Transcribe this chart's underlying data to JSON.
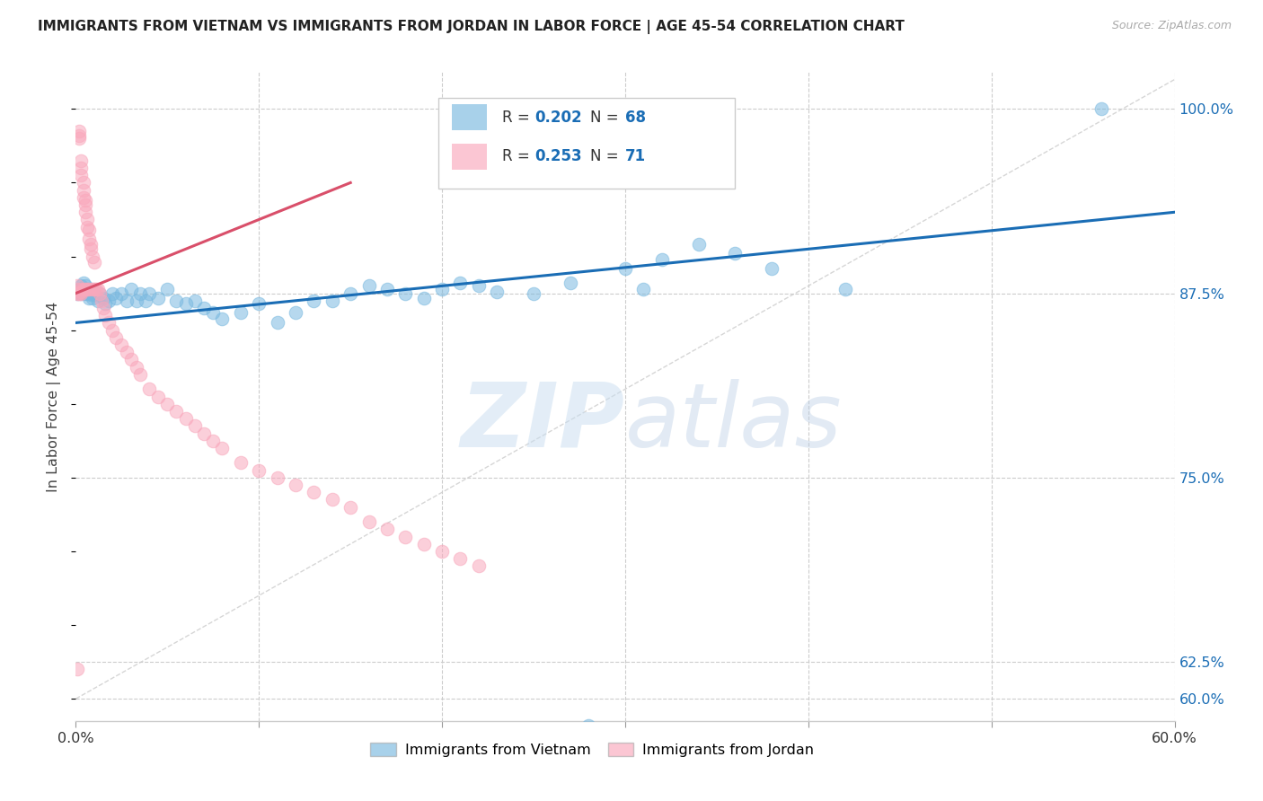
{
  "title": "IMMIGRANTS FROM VIETNAM VS IMMIGRANTS FROM JORDAN IN LABOR FORCE | AGE 45-54 CORRELATION CHART",
  "source": "Source: ZipAtlas.com",
  "ylabel": "In Labor Force | Age 45-54",
  "xlim": [
    0.0,
    0.6
  ],
  "ylim": [
    0.585,
    1.025
  ],
  "xticks": [
    0.0,
    0.1,
    0.2,
    0.3,
    0.4,
    0.5,
    0.6
  ],
  "xticklabels": [
    "0.0%",
    "",
    "",
    "",
    "",
    "",
    "60.0%"
  ],
  "yticks_right": [
    0.6,
    0.625,
    0.75,
    0.875,
    1.0
  ],
  "yticklabels_right": [
    "60.0%",
    "62.5%",
    "75.0%",
    "87.5%",
    "100.0%"
  ],
  "vietnam_color": "#7ab9e0",
  "jordan_color": "#f9a8bc",
  "vietnam_R": 0.202,
  "vietnam_N": 68,
  "jordan_R": 0.253,
  "jordan_N": 71,
  "regression_vietnam_color": "#1a6db5",
  "regression_jordan_color": "#d94f6a",
  "diagonal_color": "#cccccc",
  "watermark_zip": "ZIP",
  "watermark_atlas": "atlas",
  "legend_vietnam_label": "Immigrants from Vietnam",
  "legend_jordan_label": "Immigrants from Jordan",
  "vietnam_x": [
    0.001,
    0.002,
    0.003,
    0.003,
    0.004,
    0.004,
    0.004,
    0.005,
    0.005,
    0.005,
    0.006,
    0.006,
    0.007,
    0.007,
    0.008,
    0.008,
    0.009,
    0.009,
    0.01,
    0.01,
    0.012,
    0.013,
    0.015,
    0.016,
    0.018,
    0.02,
    0.022,
    0.025,
    0.028,
    0.03,
    0.033,
    0.035,
    0.038,
    0.04,
    0.045,
    0.05,
    0.055,
    0.06,
    0.065,
    0.07,
    0.075,
    0.08,
    0.09,
    0.1,
    0.11,
    0.12,
    0.13,
    0.14,
    0.15,
    0.16,
    0.17,
    0.18,
    0.19,
    0.2,
    0.21,
    0.22,
    0.23,
    0.25,
    0.27,
    0.3,
    0.31,
    0.32,
    0.34,
    0.36,
    0.38,
    0.42,
    0.56,
    0.28
  ],
  "vietnam_y": [
    0.875,
    0.878,
    0.88,
    0.875,
    0.882,
    0.876,
    0.878,
    0.875,
    0.88,
    0.876,
    0.878,
    0.875,
    0.876,
    0.872,
    0.878,
    0.874,
    0.876,
    0.872,
    0.875,
    0.874,
    0.87,
    0.875,
    0.872,
    0.868,
    0.87,
    0.875,
    0.872,
    0.875,
    0.87,
    0.878,
    0.87,
    0.875,
    0.87,
    0.875,
    0.872,
    0.878,
    0.87,
    0.868,
    0.87,
    0.865,
    0.862,
    0.858,
    0.862,
    0.868,
    0.855,
    0.862,
    0.87,
    0.87,
    0.875,
    0.88,
    0.878,
    0.875,
    0.872,
    0.878,
    0.882,
    0.88,
    0.876,
    0.875,
    0.882,
    0.892,
    0.878,
    0.898,
    0.908,
    0.902,
    0.892,
    0.878,
    1.0,
    0.582
  ],
  "jordan_x": [
    0.001,
    0.001,
    0.001,
    0.002,
    0.002,
    0.002,
    0.002,
    0.003,
    0.003,
    0.003,
    0.003,
    0.003,
    0.003,
    0.004,
    0.004,
    0.004,
    0.004,
    0.005,
    0.005,
    0.005,
    0.005,
    0.006,
    0.006,
    0.006,
    0.007,
    0.007,
    0.007,
    0.008,
    0.008,
    0.009,
    0.009,
    0.01,
    0.01,
    0.011,
    0.012,
    0.013,
    0.014,
    0.015,
    0.016,
    0.018,
    0.02,
    0.022,
    0.025,
    0.028,
    0.03,
    0.033,
    0.035,
    0.04,
    0.045,
    0.05,
    0.055,
    0.06,
    0.065,
    0.07,
    0.075,
    0.08,
    0.09,
    0.1,
    0.11,
    0.12,
    0.13,
    0.14,
    0.15,
    0.16,
    0.17,
    0.18,
    0.19,
    0.2,
    0.21,
    0.22,
    0.001
  ],
  "jordan_y": [
    0.878,
    0.875,
    0.88,
    0.875,
    0.985,
    0.982,
    0.98,
    0.875,
    0.876,
    0.965,
    0.96,
    0.955,
    0.878,
    0.95,
    0.945,
    0.94,
    0.878,
    0.938,
    0.935,
    0.93,
    0.878,
    0.925,
    0.92,
    0.878,
    0.918,
    0.912,
    0.878,
    0.908,
    0.905,
    0.9,
    0.878,
    0.878,
    0.896,
    0.878,
    0.878,
    0.875,
    0.87,
    0.865,
    0.86,
    0.855,
    0.85,
    0.845,
    0.84,
    0.835,
    0.83,
    0.825,
    0.82,
    0.81,
    0.805,
    0.8,
    0.795,
    0.79,
    0.785,
    0.78,
    0.775,
    0.77,
    0.76,
    0.755,
    0.75,
    0.745,
    0.74,
    0.735,
    0.73,
    0.72,
    0.715,
    0.71,
    0.705,
    0.7,
    0.695,
    0.69,
    0.62
  ]
}
